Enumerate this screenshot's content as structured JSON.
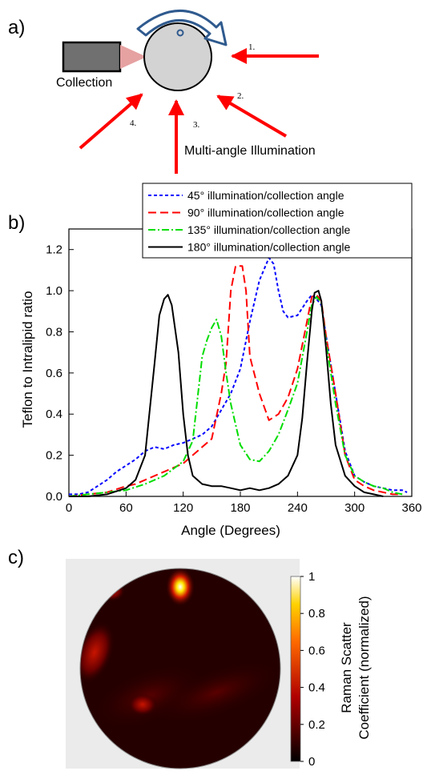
{
  "panels": {
    "a": {
      "label": "a)",
      "collection_label": "Collection",
      "illumination_label": "Multi-angle Illumination",
      "arrow_numbers": [
        "1.",
        "2.",
        "3.",
        "4."
      ]
    },
    "b": {
      "label": "b)"
    },
    "c": {
      "label": "c)"
    }
  },
  "colors": {
    "rotation_arrow": "#2f5a8e",
    "illumination_arrow": "#ff0000",
    "sample": "#d3d3d3",
    "detector": "#707070",
    "collection_cone": "#e6a1a1"
  },
  "chart_data": [
    {
      "type": "line",
      "title": "",
      "xlabel": "Angle (Degrees)",
      "ylabel": "Teflon to Intralipid ratio",
      "xlim": [
        0,
        360
      ],
      "ylim": [
        0,
        1.3
      ],
      "x_ticks": [
        0,
        60,
        120,
        180,
        240,
        300,
        360
      ],
      "y_ticks": [
        0.0,
        0.2,
        0.4,
        0.6,
        0.8,
        1.0,
        1.2
      ],
      "y_tick_labels": [
        "0.0",
        "0.2",
        "0.4",
        "0.6",
        "0.8",
        "1.0",
        "1.2"
      ],
      "legend_position": "top-right",
      "series": [
        {
          "name": "45° illumination/collection angle",
          "color": "#0000ff",
          "dash": "4,3",
          "width": 2,
          "points": [
            [
              0,
              0.01
            ],
            [
              10,
              0.01
            ],
            [
              20,
              0.02
            ],
            [
              30,
              0.05
            ],
            [
              40,
              0.08
            ],
            [
              50,
              0.12
            ],
            [
              60,
              0.15
            ],
            [
              70,
              0.18
            ],
            [
              80,
              0.22
            ],
            [
              90,
              0.24
            ],
            [
              100,
              0.23
            ],
            [
              110,
              0.25
            ],
            [
              120,
              0.26
            ],
            [
              130,
              0.28
            ],
            [
              140,
              0.3
            ],
            [
              150,
              0.34
            ],
            [
              160,
              0.42
            ],
            [
              170,
              0.5
            ],
            [
              180,
              0.62
            ],
            [
              190,
              0.85
            ],
            [
              200,
              1.05
            ],
            [
              210,
              1.16
            ],
            [
              215,
              1.13
            ],
            [
              220,
              1.0
            ],
            [
              225,
              0.9
            ],
            [
              230,
              0.87
            ],
            [
              240,
              0.88
            ],
            [
              250,
              0.95
            ],
            [
              255,
              0.98
            ],
            [
              260,
              0.96
            ],
            [
              265,
              0.93
            ],
            [
              270,
              0.78
            ],
            [
              280,
              0.5
            ],
            [
              290,
              0.22
            ],
            [
              300,
              0.1
            ],
            [
              310,
              0.07
            ],
            [
              320,
              0.05
            ],
            [
              330,
              0.04
            ],
            [
              340,
              0.03
            ],
            [
              350,
              0.03
            ],
            [
              355,
              0.02
            ]
          ]
        },
        {
          "name": "90° illumination/collection angle",
          "color": "#ff0000",
          "dash": "10,5",
          "width": 2,
          "points": [
            [
              0,
              0.0
            ],
            [
              20,
              0.01
            ],
            [
              40,
              0.02
            ],
            [
              60,
              0.05
            ],
            [
              70,
              0.06
            ],
            [
              80,
              0.08
            ],
            [
              100,
              0.12
            ],
            [
              120,
              0.16
            ],
            [
              140,
              0.24
            ],
            [
              150,
              0.28
            ],
            [
              160,
              0.5
            ],
            [
              165,
              0.65
            ],
            [
              170,
              1.0
            ],
            [
              175,
              1.12
            ],
            [
              182,
              1.12
            ],
            [
              186,
              1.0
            ],
            [
              190,
              0.68
            ],
            [
              200,
              0.5
            ],
            [
              210,
              0.37
            ],
            [
              220,
              0.4
            ],
            [
              230,
              0.48
            ],
            [
              240,
              0.62
            ],
            [
              250,
              0.85
            ],
            [
              255,
              0.97
            ],
            [
              260,
              0.98
            ],
            [
              265,
              0.95
            ],
            [
              270,
              0.78
            ],
            [
              280,
              0.5
            ],
            [
              290,
              0.2
            ],
            [
              300,
              0.08
            ],
            [
              310,
              0.05
            ],
            [
              320,
              0.03
            ],
            [
              330,
              0.02
            ],
            [
              340,
              0.01
            ],
            [
              350,
              0.01
            ]
          ]
        },
        {
          "name": "135° illumination/collection angle",
          "color": "#00dd00",
          "dash": "9,3,2,3",
          "width": 2,
          "points": [
            [
              0,
              0.0
            ],
            [
              20,
              0.01
            ],
            [
              40,
              0.02
            ],
            [
              60,
              0.03
            ],
            [
              80,
              0.06
            ],
            [
              100,
              0.1
            ],
            [
              120,
              0.17
            ],
            [
              130,
              0.27
            ],
            [
              140,
              0.68
            ],
            [
              145,
              0.76
            ],
            [
              150,
              0.82
            ],
            [
              155,
              0.86
            ],
            [
              160,
              0.78
            ],
            [
              165,
              0.6
            ],
            [
              170,
              0.45
            ],
            [
              180,
              0.25
            ],
            [
              190,
              0.18
            ],
            [
              200,
              0.17
            ],
            [
              210,
              0.22
            ],
            [
              220,
              0.3
            ],
            [
              230,
              0.42
            ],
            [
              240,
              0.55
            ],
            [
              250,
              0.8
            ],
            [
              255,
              0.93
            ],
            [
              260,
              0.97
            ],
            [
              265,
              0.94
            ],
            [
              270,
              0.75
            ],
            [
              280,
              0.45
            ],
            [
              290,
              0.2
            ],
            [
              300,
              0.1
            ],
            [
              310,
              0.07
            ],
            [
              320,
              0.05
            ],
            [
              330,
              0.04
            ],
            [
              340,
              0.02
            ],
            [
              350,
              0.01
            ]
          ]
        },
        {
          "name": "180° illumination/collection angle",
          "color": "#000000",
          "dash": "",
          "width": 2,
          "points": [
            [
              0,
              0.0
            ],
            [
              20,
              0.0
            ],
            [
              40,
              0.01
            ],
            [
              60,
              0.04
            ],
            [
              70,
              0.08
            ],
            [
              80,
              0.2
            ],
            [
              90,
              0.65
            ],
            [
              95,
              0.88
            ],
            [
              100,
              0.96
            ],
            [
              104,
              0.98
            ],
            [
              108,
              0.93
            ],
            [
              115,
              0.7
            ],
            [
              120,
              0.4
            ],
            [
              125,
              0.2
            ],
            [
              130,
              0.1
            ],
            [
              140,
              0.06
            ],
            [
              150,
              0.05
            ],
            [
              160,
              0.05
            ],
            [
              170,
              0.04
            ],
            [
              180,
              0.03
            ],
            [
              190,
              0.04
            ],
            [
              200,
              0.03
            ],
            [
              210,
              0.04
            ],
            [
              220,
              0.06
            ],
            [
              230,
              0.1
            ],
            [
              240,
              0.2
            ],
            [
              245,
              0.38
            ],
            [
              250,
              0.65
            ],
            [
              255,
              0.9
            ],
            [
              258,
              0.99
            ],
            [
              262,
              1.0
            ],
            [
              265,
              0.95
            ],
            [
              270,
              0.72
            ],
            [
              275,
              0.45
            ],
            [
              280,
              0.25
            ],
            [
              290,
              0.1
            ],
            [
              300,
              0.05
            ],
            [
              310,
              0.02
            ],
            [
              320,
              0.01
            ],
            [
              330,
              0.0
            ]
          ]
        }
      ]
    },
    {
      "type": "heatmap",
      "title": "",
      "colorbar_label_lines": [
        "Raman Scatter",
        "Coefficient (normalized)"
      ],
      "colorbar_range": [
        0,
        1
      ],
      "colorbar_ticks": [
        0,
        0.2,
        0.4,
        0.6,
        0.8,
        1
      ],
      "colorbar_tick_labels": [
        "0",
        "0.2",
        "0.4",
        "0.6",
        "0.8",
        "1"
      ],
      "colormap": "hot"
    }
  ]
}
